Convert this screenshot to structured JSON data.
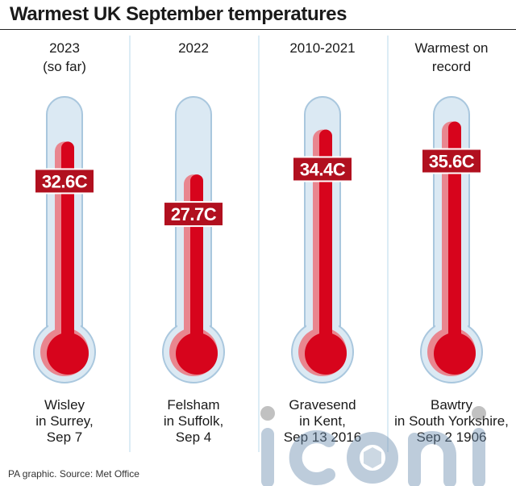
{
  "title": "Warmest UK September temperatures",
  "source": "PA graphic. Source: Met Office",
  "watermark": "iconic",
  "colors": {
    "mercury": "#d7041c",
    "mercury_light": "#e9868f",
    "label_bg": "#b1101f",
    "tube_fill": "#dbe9f3",
    "tube_stroke": "#a9c7de",
    "divider": "#dcecf5"
  },
  "columns": [
    {
      "heading": [
        "2023",
        "(so far)"
      ],
      "label": "32.6C",
      "location": [
        "Wisley",
        "in Surrey,",
        "Sep 7"
      ]
    },
    {
      "heading": [
        "2022"
      ],
      "label": "27.7C",
      "location": [
        "Felsham",
        "in Suffolk,",
        "Sep 4"
      ]
    },
    {
      "heading": [
        "2010-2021"
      ],
      "label": "34.4C",
      "location": [
        "Gravesend",
        "in Kent,",
        "Sep 13 2016"
      ]
    },
    {
      "heading": [
        "Warmest on",
        "record"
      ],
      "label": "35.6C",
      "location": [
        "Bawtry",
        "in South Yorkshire,",
        "Sep 2 1906"
      ]
    }
  ],
  "chart_data": {
    "type": "bar",
    "title": "Warmest UK September temperatures",
    "categories": [
      "2023 (so far)",
      "2022",
      "2010-2021",
      "Warmest on record"
    ],
    "values": [
      32.6,
      27.7,
      34.4,
      35.6
    ],
    "value_labels": [
      "32.6C",
      "27.7C",
      "34.4C",
      "35.6C"
    ],
    "locations": [
      "Wisley in Surrey, Sep 7",
      "Felsham in Suffolk, Sep 4",
      "Gravesend in Kent, Sep 13 2016",
      "Bawtry in South Yorkshire, Sep 2 1906"
    ],
    "grid": false
  }
}
